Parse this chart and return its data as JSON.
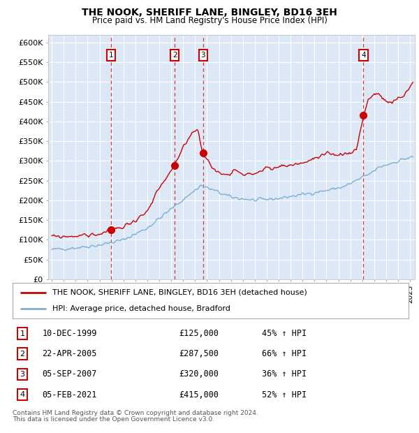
{
  "title": "THE NOOK, SHERIFF LANE, BINGLEY, BD16 3EH",
  "subtitle": "Price paid vs. HM Land Registry's House Price Index (HPI)",
  "legend_line1": "THE NOOK, SHERIFF LANE, BINGLEY, BD16 3EH (detached house)",
  "legend_line2": "HPI: Average price, detached house, Bradford",
  "footer1": "Contains HM Land Registry data © Crown copyright and database right 2024.",
  "footer2": "This data is licensed under the Open Government Licence v3.0.",
  "purchases": [
    {
      "num": 1,
      "date": "10-DEC-1999",
      "price": 125000,
      "hpi_pct": "45%",
      "x_year": 1999.95
    },
    {
      "num": 2,
      "date": "22-APR-2005",
      "price": 287500,
      "hpi_pct": "66%",
      "x_year": 2005.3
    },
    {
      "num": 3,
      "date": "05-SEP-2007",
      "price": 320000,
      "hpi_pct": "36%",
      "x_year": 2007.67
    },
    {
      "num": 4,
      "date": "05-FEB-2021",
      "price": 415000,
      "hpi_pct": "52%",
      "x_year": 2021.1
    }
  ],
  "hpi_color": "#7bafd4",
  "price_color": "#cc0000",
  "bg_color": "#dce8f5",
  "grid_color": "#ffffff",
  "dashed_color": "#dd3333",
  "ylim": [
    0,
    620000
  ],
  "yticks": [
    0,
    50000,
    100000,
    150000,
    200000,
    250000,
    300000,
    350000,
    400000,
    450000,
    500000,
    550000,
    600000
  ],
  "xlim_start": 1994.7,
  "xlim_end": 2025.4
}
